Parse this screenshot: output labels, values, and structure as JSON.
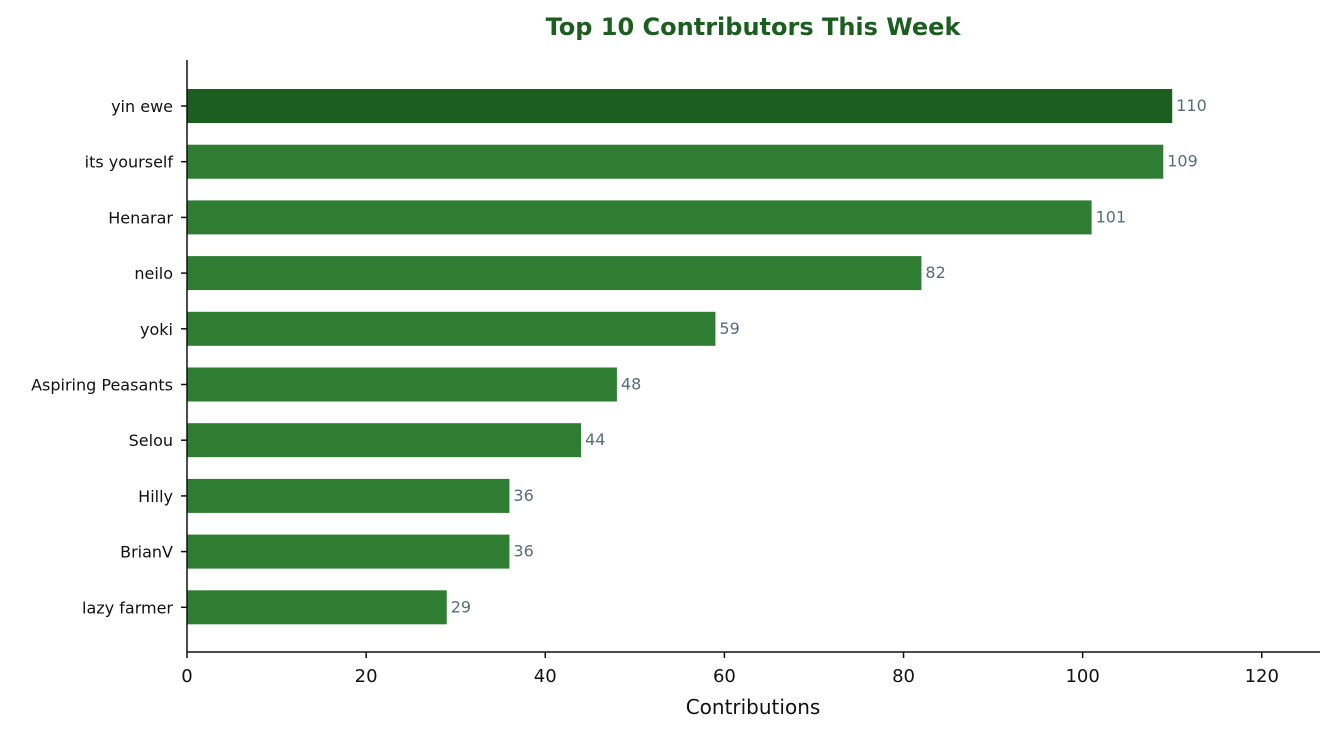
{
  "chart_data": {
    "type": "bar",
    "orientation": "horizontal",
    "title": "Top 10 Contributors This Week",
    "xlabel": "Contributions",
    "ylabel": "",
    "xlim": [
      0,
      126.5
    ],
    "xticks": [
      0,
      20,
      40,
      60,
      80,
      100,
      120
    ],
    "grid": false,
    "categories": [
      "yin ewe",
      "its yourself",
      "Henarar",
      "neilo",
      "yoki",
      "Aspiring Peasants",
      "Selou",
      "Hilly",
      "BrianV",
      "lazy farmer"
    ],
    "values": [
      110,
      109,
      101,
      82,
      59,
      48,
      44,
      36,
      36,
      29
    ],
    "colors": {
      "top_bar": "#1b5e20",
      "bar": "#2e7d32",
      "title": "#1b5e20",
      "value_label": "#546e7a",
      "axis": "#111111"
    }
  }
}
